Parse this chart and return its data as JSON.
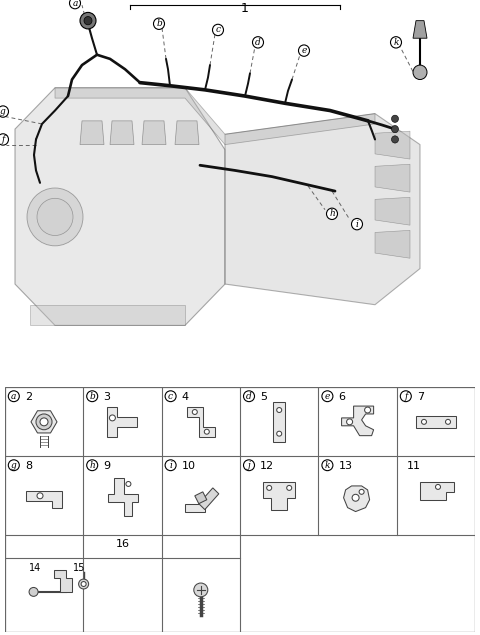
{
  "bg_color": "#ffffff",
  "grid_color": "#666666",
  "wire_color": "#111111",
  "engine_edge": "#555555",
  "part_edge": "#444444",
  "row1": [
    [
      "a",
      "2"
    ],
    [
      "b",
      "3"
    ],
    [
      "c",
      "4"
    ],
    [
      "d",
      "5"
    ],
    [
      "e",
      "6"
    ],
    [
      "f",
      "7"
    ]
  ],
  "row2": [
    [
      "g",
      "8"
    ],
    [
      "h",
      "9"
    ],
    [
      "i",
      "10"
    ],
    [
      "j",
      "12"
    ],
    [
      "k",
      "13"
    ],
    [
      "",
      "11"
    ]
  ],
  "main_part_num": "1",
  "fig_w": 4.8,
  "fig_h": 6.35,
  "dpi": 100
}
